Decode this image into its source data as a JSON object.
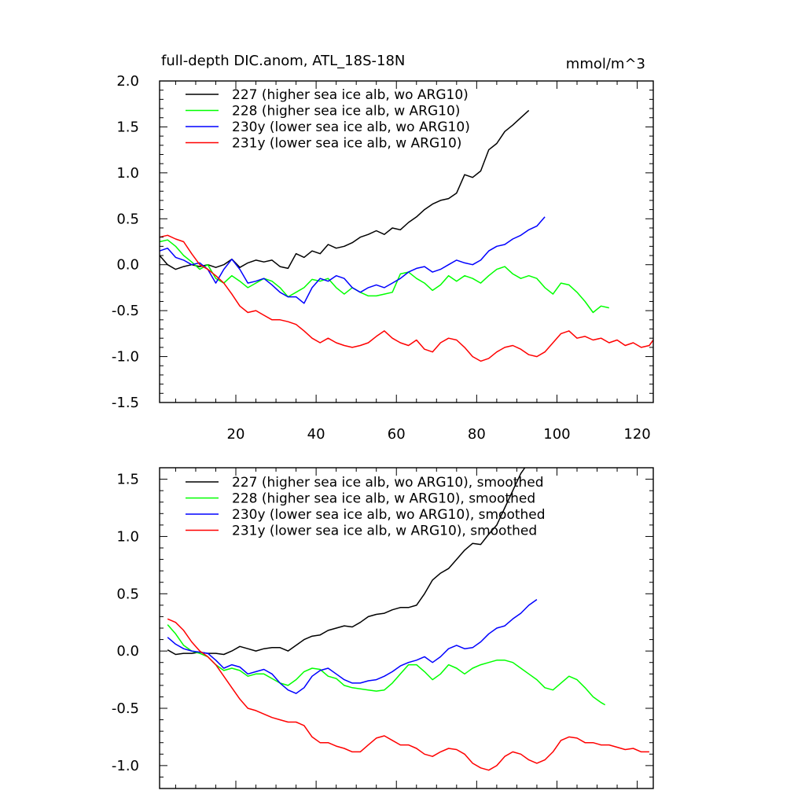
{
  "chart_data": [
    {
      "type": "line",
      "title": "full-depth DIC.anom, ATL_18S-18N",
      "units": "mmol/m^3",
      "xlim": [
        1,
        124
      ],
      "ylim": [
        -1.5,
        2.0
      ],
      "x_ticks": [
        20,
        40,
        60,
        80,
        100,
        120
      ],
      "x_tick_labels": [
        "20",
        "40",
        "60",
        "80",
        "100",
        "120"
      ],
      "y_ticks": [
        -1.5,
        -1.0,
        -0.5,
        0.0,
        0.5,
        1.0,
        1.5,
        2.0
      ],
      "y_tick_labels": [
        "-1.5",
        "-1.0",
        "-0.5",
        "0.0",
        "0.5",
        "1.0",
        "1.5",
        "2.0"
      ],
      "legend_position": "top-left",
      "series": [
        {
          "name": "227 (higher sea ice alb, wo ARG10)",
          "color": "#000000",
          "x": [
            1,
            3,
            5,
            7,
            9,
            11,
            13,
            15,
            17,
            19,
            21,
            23,
            25,
            27,
            29,
            31,
            33,
            35,
            37,
            39,
            41,
            43,
            45,
            47,
            49,
            51,
            53,
            55,
            57,
            59,
            61,
            63,
            65,
            67,
            69,
            71,
            73,
            75,
            77,
            79,
            81,
            83,
            85,
            87,
            89,
            91,
            93
          ],
          "y": [
            0.1,
            0.0,
            -0.05,
            -0.02,
            0.0,
            -0.02,
            0.0,
            -0.03,
            0.0,
            0.06,
            -0.03,
            0.02,
            0.05,
            0.03,
            0.05,
            -0.02,
            -0.04,
            0.12,
            0.08,
            0.15,
            0.12,
            0.22,
            0.18,
            0.2,
            0.24,
            0.3,
            0.33,
            0.37,
            0.33,
            0.4,
            0.38,
            0.46,
            0.52,
            0.6,
            0.66,
            0.7,
            0.72,
            0.78,
            0.98,
            0.95,
            1.02,
            1.25,
            1.32,
            1.45,
            1.52,
            1.6,
            1.68
          ]
        },
        {
          "name": "228 (higher sea ice alb, w ARG10)",
          "color": "#00ff00",
          "x": [
            1,
            3,
            5,
            7,
            9,
            11,
            13,
            15,
            17,
            19,
            21,
            23,
            25,
            27,
            29,
            31,
            33,
            35,
            37,
            39,
            41,
            43,
            45,
            47,
            49,
            51,
            53,
            55,
            57,
            59,
            61,
            63,
            65,
            67,
            69,
            71,
            73,
            75,
            77,
            79,
            81,
            83,
            85,
            87,
            89,
            91,
            93,
            95,
            97,
            99,
            101,
            103,
            105,
            107,
            109,
            111,
            113
          ],
          "y": [
            0.25,
            0.27,
            0.2,
            0.1,
            0.03,
            -0.05,
            0.0,
            -0.15,
            -0.2,
            -0.12,
            -0.18,
            -0.25,
            -0.2,
            -0.15,
            -0.18,
            -0.25,
            -0.35,
            -0.3,
            -0.25,
            -0.16,
            -0.18,
            -0.15,
            -0.25,
            -0.32,
            -0.25,
            -0.3,
            -0.34,
            -0.34,
            -0.32,
            -0.3,
            -0.1,
            -0.08,
            -0.15,
            -0.2,
            -0.28,
            -0.22,
            -0.12,
            -0.18,
            -0.12,
            -0.15,
            -0.2,
            -0.12,
            -0.05,
            -0.02,
            -0.1,
            -0.15,
            -0.12,
            -0.15,
            -0.25,
            -0.32,
            -0.2,
            -0.22,
            -0.3,
            -0.4,
            -0.52,
            -0.45,
            -0.47
          ]
        },
        {
          "name": "230y (lower sea ice alb, wo ARG10)",
          "color": "#0000ff",
          "x": [
            1,
            3,
            5,
            7,
            9,
            11,
            13,
            15,
            17,
            19,
            21,
            23,
            25,
            27,
            29,
            31,
            33,
            35,
            37,
            39,
            41,
            43,
            45,
            47,
            49,
            51,
            53,
            55,
            57,
            59,
            61,
            63,
            65,
            67,
            69,
            71,
            73,
            75,
            77,
            79,
            81,
            83,
            85,
            87,
            89,
            91,
            93,
            95,
            97
          ],
          "y": [
            0.15,
            0.18,
            0.08,
            0.05,
            0.0,
            0.02,
            -0.05,
            -0.2,
            -0.05,
            0.06,
            -0.05,
            -0.2,
            -0.18,
            -0.15,
            -0.22,
            -0.3,
            -0.35,
            -0.35,
            -0.42,
            -0.25,
            -0.15,
            -0.18,
            -0.12,
            -0.15,
            -0.25,
            -0.3,
            -0.25,
            -0.22,
            -0.25,
            -0.2,
            -0.15,
            -0.08,
            -0.04,
            -0.02,
            -0.08,
            -0.05,
            0.0,
            0.05,
            0.02,
            0.0,
            0.05,
            0.15,
            0.2,
            0.22,
            0.28,
            0.32,
            0.38,
            0.42,
            0.52
          ]
        },
        {
          "name": "231y (lower sea ice alb, w ARG10)",
          "color": "#ff0000",
          "x": [
            1,
            3,
            5,
            7,
            9,
            11,
            13,
            15,
            17,
            19,
            21,
            23,
            25,
            27,
            29,
            31,
            33,
            35,
            37,
            39,
            41,
            43,
            45,
            47,
            49,
            51,
            53,
            55,
            57,
            59,
            61,
            63,
            65,
            67,
            69,
            71,
            73,
            75,
            77,
            79,
            81,
            83,
            85,
            87,
            89,
            91,
            93,
            95,
            97,
            99,
            101,
            103,
            105,
            107,
            109,
            111,
            113,
            115,
            117,
            119,
            121,
            123,
            124
          ],
          "y": [
            0.3,
            0.32,
            0.28,
            0.25,
            0.12,
            0.0,
            -0.05,
            -0.12,
            -0.2,
            -0.32,
            -0.45,
            -0.52,
            -0.5,
            -0.55,
            -0.6,
            -0.6,
            -0.62,
            -0.65,
            -0.72,
            -0.8,
            -0.85,
            -0.8,
            -0.85,
            -0.88,
            -0.9,
            -0.88,
            -0.85,
            -0.78,
            -0.72,
            -0.8,
            -0.85,
            -0.88,
            -0.82,
            -0.92,
            -0.95,
            -0.85,
            -0.8,
            -0.82,
            -0.9,
            -1.0,
            -1.05,
            -1.02,
            -0.95,
            -0.9,
            -0.88,
            -0.92,
            -0.98,
            -1.0,
            -0.95,
            -0.85,
            -0.75,
            -0.72,
            -0.8,
            -0.78,
            -0.82,
            -0.8,
            -0.85,
            -0.82,
            -0.88,
            -0.85,
            -0.9,
            -0.88,
            -0.82
          ]
        }
      ]
    },
    {
      "type": "line",
      "xlim": [
        1,
        124
      ],
      "ylim": [
        -1.2,
        1.6
      ],
      "x_ticks": [
        20,
        40,
        60,
        80,
        100,
        120
      ],
      "x_tick_labels": [],
      "y_ticks": [
        -1.0,
        -0.5,
        0.0,
        0.5,
        1.0,
        1.5
      ],
      "y_tick_labels": [
        "-1.0",
        "-0.5",
        "0.0",
        "0.5",
        "1.0",
        "1.5"
      ],
      "legend_position": "top-left",
      "series": [
        {
          "name": "227 (higher sea ice alb, wo ARG10), smoothed",
          "color": "#000000",
          "x": [
            3,
            5,
            7,
            9,
            11,
            13,
            15,
            17,
            19,
            21,
            23,
            25,
            27,
            29,
            31,
            33,
            35,
            37,
            39,
            41,
            43,
            45,
            47,
            49,
            51,
            53,
            55,
            57,
            59,
            61,
            63,
            65,
            67,
            69,
            71,
            73,
            75,
            77,
            79,
            81,
            83,
            85,
            87,
            89,
            91,
            92
          ],
          "y": [
            0.01,
            -0.03,
            -0.02,
            -0.02,
            -0.01,
            -0.02,
            -0.02,
            -0.03,
            0.0,
            0.04,
            0.02,
            0.0,
            0.02,
            0.03,
            0.03,
            0.0,
            0.05,
            0.1,
            0.13,
            0.14,
            0.18,
            0.2,
            0.22,
            0.21,
            0.25,
            0.3,
            0.32,
            0.33,
            0.36,
            0.38,
            0.38,
            0.4,
            0.5,
            0.62,
            0.68,
            0.72,
            0.8,
            0.88,
            0.94,
            0.93,
            1.02,
            1.1,
            1.25,
            1.4,
            1.55,
            1.6
          ]
        },
        {
          "name": "228 (higher sea ice alb, w ARG10), smoothed",
          "color": "#00ff00",
          "x": [
            3,
            5,
            7,
            9,
            11,
            13,
            15,
            17,
            19,
            21,
            23,
            25,
            27,
            29,
            31,
            33,
            35,
            37,
            39,
            41,
            43,
            45,
            47,
            49,
            51,
            53,
            55,
            57,
            59,
            61,
            63,
            65,
            67,
            69,
            71,
            73,
            75,
            77,
            79,
            81,
            83,
            85,
            87,
            89,
            91,
            93,
            95,
            97,
            99,
            101,
            103,
            105,
            107,
            109,
            111,
            112
          ],
          "y": [
            0.23,
            0.15,
            0.05,
            0.0,
            -0.02,
            -0.05,
            -0.12,
            -0.17,
            -0.15,
            -0.17,
            -0.22,
            -0.2,
            -0.2,
            -0.24,
            -0.28,
            -0.3,
            -0.25,
            -0.18,
            -0.15,
            -0.16,
            -0.22,
            -0.24,
            -0.3,
            -0.32,
            -0.33,
            -0.34,
            -0.35,
            -0.34,
            -0.28,
            -0.2,
            -0.12,
            -0.12,
            -0.18,
            -0.25,
            -0.2,
            -0.12,
            -0.15,
            -0.2,
            -0.15,
            -0.12,
            -0.1,
            -0.08,
            -0.08,
            -0.1,
            -0.15,
            -0.2,
            -0.25,
            -0.32,
            -0.34,
            -0.28,
            -0.22,
            -0.25,
            -0.32,
            -0.4,
            -0.45,
            -0.47
          ]
        },
        {
          "name": "230y (lower sea ice alb, wo ARG10), smoothed",
          "color": "#0000ff",
          "x": [
            3,
            5,
            7,
            9,
            11,
            13,
            15,
            17,
            19,
            21,
            23,
            25,
            27,
            29,
            31,
            33,
            35,
            37,
            39,
            41,
            43,
            45,
            47,
            49,
            51,
            53,
            55,
            57,
            59,
            61,
            63,
            65,
            67,
            69,
            71,
            73,
            75,
            77,
            79,
            81,
            83,
            85,
            87,
            89,
            91,
            93,
            95
          ],
          "y": [
            0.12,
            0.06,
            0.02,
            0.0,
            -0.01,
            -0.02,
            -0.08,
            -0.15,
            -0.12,
            -0.14,
            -0.2,
            -0.18,
            -0.16,
            -0.2,
            -0.28,
            -0.34,
            -0.37,
            -0.32,
            -0.22,
            -0.17,
            -0.15,
            -0.2,
            -0.25,
            -0.28,
            -0.28,
            -0.26,
            -0.25,
            -0.22,
            -0.18,
            -0.13,
            -0.1,
            -0.08,
            -0.05,
            -0.1,
            -0.05,
            0.02,
            0.05,
            0.02,
            0.03,
            0.08,
            0.15,
            0.2,
            0.22,
            0.28,
            0.33,
            0.4,
            0.45
          ]
        },
        {
          "name": "231y (lower sea ice alb, w ARG10), smoothed",
          "color": "#ff0000",
          "x": [
            3,
            5,
            7,
            9,
            11,
            13,
            15,
            17,
            19,
            21,
            23,
            25,
            27,
            29,
            31,
            33,
            35,
            37,
            39,
            41,
            43,
            45,
            47,
            49,
            51,
            53,
            55,
            57,
            59,
            61,
            63,
            65,
            67,
            69,
            71,
            73,
            75,
            77,
            79,
            81,
            83,
            85,
            87,
            89,
            91,
            93,
            95,
            97,
            99,
            101,
            103,
            105,
            107,
            109,
            111,
            113,
            115,
            117,
            119,
            121,
            123
          ],
          "y": [
            0.28,
            0.25,
            0.18,
            0.08,
            0.0,
            -0.05,
            -0.12,
            -0.22,
            -0.32,
            -0.42,
            -0.5,
            -0.52,
            -0.55,
            -0.58,
            -0.6,
            -0.62,
            -0.62,
            -0.65,
            -0.75,
            -0.8,
            -0.8,
            -0.83,
            -0.85,
            -0.88,
            -0.88,
            -0.82,
            -0.76,
            -0.74,
            -0.78,
            -0.82,
            -0.82,
            -0.85,
            -0.9,
            -0.92,
            -0.88,
            -0.85,
            -0.86,
            -0.9,
            -0.98,
            -1.02,
            -1.04,
            -1.0,
            -0.92,
            -0.88,
            -0.9,
            -0.95,
            -0.98,
            -0.95,
            -0.88,
            -0.78,
            -0.75,
            -0.76,
            -0.8,
            -0.8,
            -0.82,
            -0.82,
            -0.84,
            -0.86,
            -0.85,
            -0.88,
            -0.88
          ]
        }
      ]
    }
  ]
}
